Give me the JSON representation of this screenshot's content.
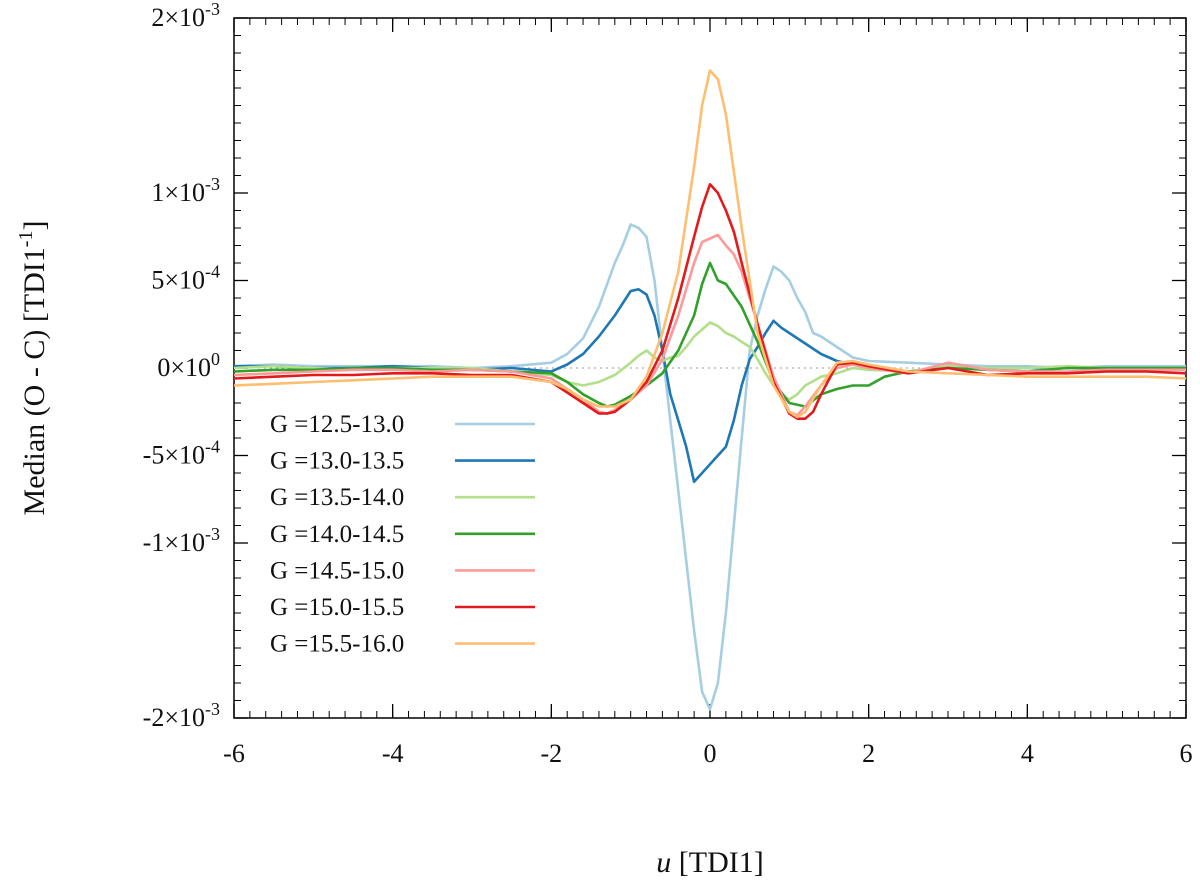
{
  "chart_data": {
    "type": "line",
    "title": "",
    "xlabel_italic": "u",
    "xlabel_rest": " [TDI1]",
    "ylabel_main": "Median (O - C) [TDI1",
    "ylabel_sup": "-1",
    "ylabel_end": "]",
    "xlim": [
      -6,
      6
    ],
    "ylim": [
      -0.002,
      0.002
    ],
    "x_ticks": [
      {
        "value": -6,
        "label": "-6"
      },
      {
        "value": -4,
        "label": "-4"
      },
      {
        "value": -2,
        "label": "-2"
      },
      {
        "value": 0,
        "label": "0"
      },
      {
        "value": 2,
        "label": "2"
      },
      {
        "value": 4,
        "label": "4"
      },
      {
        "value": 6,
        "label": "6"
      }
    ],
    "y_ticks": [
      {
        "value": 0.002,
        "mant": "2",
        "exp": "-3"
      },
      {
        "value": 0.001,
        "mant": "1",
        "exp": "-3"
      },
      {
        "value": 0.0005,
        "mant": "5",
        "exp": "-4"
      },
      {
        "value": 0,
        "mant": "0",
        "exp": "0"
      },
      {
        "value": -0.0005,
        "mant": "-5",
        "exp": "-4"
      },
      {
        "value": -0.001,
        "mant": "-1",
        "exp": "-3"
      },
      {
        "value": -0.002,
        "mant": "-2",
        "exp": "-3"
      }
    ],
    "x_minor_step": 0.2,
    "y_minor_step": 0.0001,
    "zero_line": true,
    "legend_position": "bottom-left",
    "series": [
      {
        "name": "G =12.5-13.0",
        "color": "#a6cee3",
        "x": [
          -6,
          -5.5,
          -5,
          -4.5,
          -4,
          -3.5,
          -3,
          -2.5,
          -2,
          -1.8,
          -1.6,
          -1.4,
          -1.2,
          -1.1,
          -1.0,
          -0.9,
          -0.8,
          -0.7,
          -0.6,
          -0.5,
          -0.4,
          -0.3,
          -0.2,
          -0.1,
          0,
          0.1,
          0.2,
          0.3,
          0.4,
          0.5,
          0.6,
          0.7,
          0.8,
          0.9,
          1.0,
          1.1,
          1.2,
          1.3,
          1.4,
          1.6,
          1.8,
          2.0,
          2.5,
          3,
          3.5,
          4,
          4.5,
          5,
          5.5,
          6
        ],
        "y": [
          1e-05,
          2e-05,
          1e-05,
          1e-05,
          1e-05,
          1e-05,
          0,
          1e-05,
          3e-05,
          8e-05,
          0.00017,
          0.00035,
          0.0006,
          0.0007,
          0.00082,
          0.0008,
          0.00075,
          0.0005,
          0.0001,
          -0.0003,
          -0.0007,
          -0.0011,
          -0.0015,
          -0.00185,
          -0.00195,
          -0.0018,
          -0.0014,
          -0.0009,
          -0.0004,
          0.0001,
          0.0003,
          0.00045,
          0.00058,
          0.00055,
          0.0005,
          0.0004,
          0.00032,
          0.0002,
          0.00018,
          0.00012,
          6e-05,
          4e-05,
          3e-05,
          2e-05,
          1e-05,
          1e-05,
          0,
          1e-05,
          1e-05,
          1e-05
        ]
      },
      {
        "name": "G =13.0-13.5",
        "color": "#1f78b4",
        "x": [
          -6,
          -5.5,
          -5,
          -4.5,
          -4,
          -3.5,
          -3,
          -2.5,
          -2,
          -1.8,
          -1.6,
          -1.4,
          -1.2,
          -1.0,
          -0.9,
          -0.8,
          -0.7,
          -0.6,
          -0.5,
          -0.4,
          -0.3,
          -0.2,
          -0.1,
          0,
          0.1,
          0.2,
          0.3,
          0.4,
          0.5,
          0.6,
          0.7,
          0.8,
          0.9,
          1.0,
          1.2,
          1.4,
          1.6,
          1.8,
          2.0,
          2.5,
          3,
          3.5,
          4,
          4.5,
          5,
          5.5,
          6
        ],
        "y": [
          1e-05,
          1e-05,
          0,
          0,
          1e-05,
          0,
          -1e-05,
          0,
          -2e-05,
          2e-05,
          8e-05,
          0.00018,
          0.0003,
          0.00044,
          0.00045,
          0.00042,
          0.0003,
          0.0001,
          -0.00015,
          -0.0003,
          -0.00045,
          -0.00065,
          -0.0006,
          -0.00055,
          -0.0005,
          -0.00045,
          -0.0003,
          -0.0001,
          5e-05,
          0.00012,
          0.0002,
          0.00027,
          0.00023,
          0.0002,
          0.00014,
          8e-05,
          4e-05,
          2e-05,
          0,
          -2e-05,
          0,
          0,
          0,
          0,
          0,
          0,
          0
        ]
      },
      {
        "name": "G =13.5-14.0",
        "color": "#b2df8a",
        "x": [
          -6,
          -5.5,
          -5,
          -4.5,
          -4,
          -3.5,
          -3,
          -2.5,
          -2,
          -1.8,
          -1.6,
          -1.4,
          -1.2,
          -1.0,
          -0.9,
          -0.8,
          -0.7,
          -0.6,
          -0.5,
          -0.4,
          -0.3,
          -0.2,
          -0.1,
          0,
          0.1,
          0.2,
          0.3,
          0.4,
          0.5,
          0.6,
          0.7,
          0.8,
          0.9,
          1.0,
          1.1,
          1.2,
          1.4,
          1.6,
          1.8,
          2.0,
          2.5,
          3,
          3.5,
          4,
          4.5,
          5,
          5.5,
          6
        ],
        "y": [
          0,
          1e-05,
          0,
          -1e-05,
          0,
          0,
          0,
          -2e-05,
          -4e-05,
          -8e-05,
          -0.0001,
          -8e-05,
          -4e-05,
          3e-05,
          7e-05,
          0.0001,
          6e-05,
          4e-05,
          6e-05,
          7e-05,
          0.00012,
          0.00018,
          0.00022,
          0.00026,
          0.00024,
          0.0002,
          0.00018,
          0.00015,
          0.00012,
          5e-05,
          -3e-05,
          -0.0001,
          -0.00015,
          -0.00018,
          -0.00015,
          -0.0001,
          -5e-05,
          -3e-05,
          0,
          -1e-05,
          -2e-05,
          1e-05,
          0,
          0,
          1e-05,
          0,
          0,
          0
        ]
      },
      {
        "name": "G =14.0-14.5",
        "color": "#33a02c",
        "x": [
          -6,
          -5.5,
          -5,
          -4.5,
          -4,
          -3.5,
          -3,
          -2.5,
          -2,
          -1.8,
          -1.6,
          -1.4,
          -1.3,
          -1.2,
          -1.0,
          -0.8,
          -0.6,
          -0.4,
          -0.2,
          -0.1,
          0,
          0.1,
          0.2,
          0.4,
          0.6,
          0.8,
          1.0,
          1.2,
          1.4,
          1.6,
          1.8,
          2.0,
          2.2,
          2.5,
          3,
          3.5,
          4,
          4.5,
          5,
          5.5,
          6
        ],
        "y": [
          -2e-05,
          -1e-05,
          -1e-05,
          0,
          0,
          -1e-05,
          -1e-05,
          -2e-05,
          -3e-05,
          -8e-05,
          -0.00015,
          -0.0002,
          -0.00022,
          -0.00021,
          -0.00016,
          -0.0001,
          -3e-05,
          0.0001,
          0.0003,
          0.00048,
          0.0006,
          0.0005,
          0.00048,
          0.00035,
          0.00015,
          -8e-05,
          -0.0002,
          -0.00022,
          -0.00015,
          -0.00012,
          -0.0001,
          -0.0001,
          -5e-05,
          -2e-05,
          0,
          -1e-05,
          -2e-05,
          0,
          0,
          0,
          0
        ]
      },
      {
        "name": "G =14.5-15.0",
        "color": "#fb9a99",
        "x": [
          -6,
          -5.5,
          -5,
          -4.5,
          -4,
          -3.5,
          -3,
          -2.5,
          -2,
          -1.8,
          -1.6,
          -1.4,
          -1.3,
          -1.2,
          -1.0,
          -0.8,
          -0.6,
          -0.4,
          -0.2,
          -0.1,
          0,
          0.1,
          0.2,
          0.3,
          0.4,
          0.6,
          0.8,
          1.0,
          1.1,
          1.2,
          1.4,
          1.6,
          1.8,
          2.0,
          2.5,
          3,
          3.5,
          4,
          4.5,
          5,
          5.5,
          6
        ],
        "y": [
          -4e-05,
          -3e-05,
          -2e-05,
          -1e-05,
          -1e-05,
          -2e-05,
          -1e-05,
          -2e-05,
          -6e-05,
          -0.00012,
          -0.00018,
          -0.00025,
          -0.00026,
          -0.00024,
          -0.00018,
          -0.0001,
          5e-05,
          0.0003,
          0.0006,
          0.00072,
          0.00074,
          0.00076,
          0.0007,
          0.00065,
          0.00055,
          0.00025,
          -5e-05,
          -0.00025,
          -0.00027,
          -0.00022,
          -0.0001,
          0,
          2e-05,
          0,
          -3e-05,
          3e-05,
          -1e-05,
          -2e-05,
          -2e-05,
          -1e-05,
          -1e-05,
          -1e-05
        ]
      },
      {
        "name": "G =15.0-15.5",
        "color": "#e31a1c",
        "x": [
          -6,
          -5.5,
          -5,
          -4.5,
          -4,
          -3.5,
          -3,
          -2.5,
          -2,
          -1.8,
          -1.6,
          -1.4,
          -1.3,
          -1.2,
          -1.0,
          -0.8,
          -0.6,
          -0.4,
          -0.2,
          -0.1,
          0,
          0.1,
          0.2,
          0.3,
          0.4,
          0.6,
          0.8,
          1.0,
          1.1,
          1.2,
          1.3,
          1.4,
          1.6,
          1.8,
          2.0,
          2.5,
          3,
          3.5,
          4,
          4.5,
          5,
          5.5,
          6
        ],
        "y": [
          -6e-05,
          -5e-05,
          -4e-05,
          -4e-05,
          -3e-05,
          -3e-05,
          -4e-05,
          -4e-05,
          -8e-05,
          -0.00014,
          -0.0002,
          -0.00026,
          -0.00026,
          -0.00025,
          -0.00018,
          -8e-05,
          0.0001,
          0.0004,
          0.00075,
          0.00092,
          0.00105,
          0.001,
          0.0009,
          0.00078,
          0.0006,
          0.00025,
          -8e-05,
          -0.00026,
          -0.00029,
          -0.00029,
          -0.00025,
          -0.00015,
          2e-05,
          3e-05,
          1e-05,
          -3e-05,
          0,
          -4e-05,
          -3e-05,
          -3e-05,
          -2e-05,
          -2e-05,
          -3e-05
        ]
      },
      {
        "name": "G =15.5-16.0",
        "color": "#fdbf6f",
        "x": [
          -6,
          -5.5,
          -5,
          -4.5,
          -4,
          -3.5,
          -3,
          -2.5,
          -2,
          -1.8,
          -1.6,
          -1.4,
          -1.2,
          -1.0,
          -0.8,
          -0.6,
          -0.4,
          -0.2,
          -0.1,
          0,
          0.1,
          0.2,
          0.4,
          0.6,
          0.8,
          1.0,
          1.1,
          1.2,
          1.4,
          1.6,
          1.8,
          2.0,
          2.5,
          3,
          3.5,
          4,
          4.5,
          5,
          5.5,
          6
        ],
        "y": [
          -0.0001,
          -9e-05,
          -8e-05,
          -7e-05,
          -6e-05,
          -5e-05,
          -5e-05,
          -5e-05,
          -8e-05,
          -0.00012,
          -0.00018,
          -0.00022,
          -0.00022,
          -0.00018,
          -5e-05,
          0.0002,
          0.00055,
          0.00115,
          0.0015,
          0.0017,
          0.00165,
          0.00145,
          0.0008,
          0.0002,
          -0.0001,
          -0.00025,
          -0.00028,
          -0.00025,
          -0.0001,
          3e-05,
          4e-05,
          2e-05,
          -2e-05,
          -3e-05,
          -4e-05,
          -5e-05,
          -5e-05,
          -5e-05,
          -5e-05,
          -6e-05
        ]
      }
    ]
  }
}
